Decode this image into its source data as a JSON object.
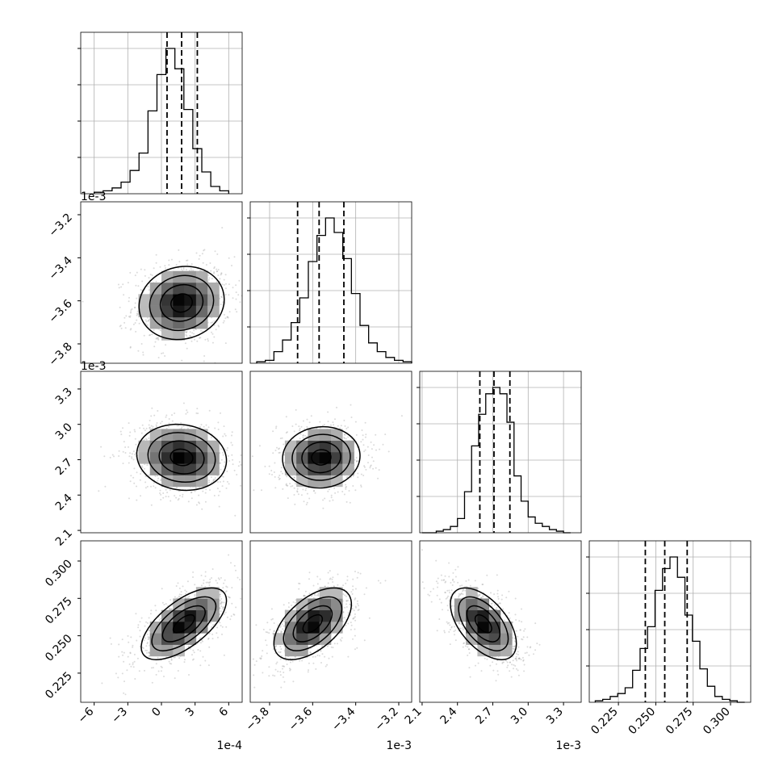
{
  "figure": {
    "type": "corner-plot",
    "parameters": [
      {
        "id": "p0",
        "offset_label": "1e-4",
        "ticks": [
          "−6",
          "−3",
          "0",
          "3",
          "6"
        ],
        "tick_values": [
          -6,
          -3,
          0,
          3,
          6
        ],
        "range": [
          -7.2,
          7.2
        ]
      },
      {
        "id": "p1",
        "offset_label": "1e-3",
        "ticks": [
          "−3.8",
          "−3.6",
          "−3.4",
          "−3.2"
        ],
        "tick_values": [
          -3.8,
          -3.6,
          -3.4,
          -3.2
        ],
        "range": [
          -3.89,
          -3.14
        ]
      },
      {
        "id": "p2",
        "offset_label": "1e-3",
        "ticks": [
          "2.1",
          "2.4",
          "2.7",
          "3.0",
          "3.3"
        ],
        "tick_values": [
          2.1,
          2.4,
          2.7,
          3.0,
          3.3
        ],
        "range": [
          2.08,
          3.45
        ]
      },
      {
        "id": "p3",
        "offset_label": "",
        "ticks": [
          "0.225",
          "0.250",
          "0.275",
          "0.300"
        ],
        "tick_values": [
          0.225,
          0.25,
          0.275,
          0.3
        ],
        "range": [
          0.2055,
          0.3135
        ]
      }
    ]
  },
  "chart_data": {
    "type": "histogram",
    "grid": true,
    "diagonal_histograms": [
      {
        "param": "p0",
        "bin_edges": [
          -6.0,
          -5.2,
          -4.4,
          -3.6,
          -2.8,
          -2.0,
          -1.2,
          -0.4,
          0.4,
          1.2,
          2.0,
          2.8,
          3.6,
          4.4,
          5.2,
          6.0
        ],
        "counts": [
          1,
          2,
          4,
          8,
          16,
          28,
          57,
          82,
          100,
          86,
          58,
          31,
          15,
          5,
          2
        ],
        "quantiles": [
          0.5,
          1.8,
          3.2
        ]
      },
      {
        "param": "p1",
        "bin_edges": [
          -3.86,
          -3.82,
          -3.78,
          -3.74,
          -3.7,
          -3.66,
          -3.62,
          -3.58,
          -3.54,
          -3.5,
          -3.46,
          -3.42,
          -3.38,
          -3.34,
          -3.3,
          -3.26,
          -3.22,
          -3.18,
          -3.14
        ],
        "counts": [
          1,
          2,
          8,
          16,
          28,
          45,
          70,
          88,
          100,
          90,
          72,
          48,
          26,
          14,
          8,
          4,
          2,
          1
        ],
        "quantiles": [
          -3.67,
          -3.57,
          -3.455
        ]
      },
      {
        "param": "p2",
        "bin_edges": [
          2.1,
          2.16,
          2.22,
          2.28,
          2.34,
          2.4,
          2.46,
          2.52,
          2.58,
          2.64,
          2.7,
          2.76,
          2.82,
          2.88,
          2.94,
          3.0,
          3.06,
          3.12,
          3.18,
          3.24,
          3.3,
          3.36
        ],
        "counts": [
          0,
          0,
          1,
          2,
          4,
          9,
          26,
          55,
          75,
          88,
          92,
          88,
          70,
          36,
          20,
          10,
          6,
          4,
          2,
          1,
          0
        ],
        "quantiles": [
          2.59,
          2.71,
          2.845
        ]
      },
      {
        "param": "p3",
        "bin_edges": [
          0.2095,
          0.2145,
          0.2195,
          0.2245,
          0.2295,
          0.2345,
          0.2395,
          0.2445,
          0.2495,
          0.2545,
          0.2595,
          0.2645,
          0.2695,
          0.2745,
          0.2795,
          0.2845,
          0.2895,
          0.2945,
          0.2995,
          0.3045,
          0.3095
        ],
        "counts": [
          1,
          2,
          4,
          6,
          10,
          22,
          37,
          52,
          77,
          92,
          100,
          86,
          60,
          42,
          23,
          11,
          4,
          2,
          1,
          0
        ],
        "quantiles": [
          0.243,
          0.256,
          0.271
        ]
      }
    ],
    "pair_panels": [
      {
        "x": "p0",
        "y": "p1",
        "peak": [
          1.8,
          -3.61
        ],
        "sd": [
          1.9,
          0.085
        ],
        "rho": 0.1
      },
      {
        "x": "p0",
        "y": "p2",
        "peak": [
          1.8,
          2.72
        ],
        "sd": [
          2.0,
          0.14
        ],
        "rho": -0.1
      },
      {
        "x": "p1",
        "y": "p2",
        "peak": [
          -3.56,
          2.72
        ],
        "sd": [
          0.09,
          0.13
        ],
        "rho": 0.05
      },
      {
        "x": "p0",
        "y": "p3",
        "peak": [
          2.0,
          0.258
        ],
        "sd": [
          1.9,
          0.012
        ],
        "rho": 0.65
      },
      {
        "x": "p1",
        "y": "p3",
        "peak": [
          -3.6,
          0.258
        ],
        "sd": [
          0.09,
          0.012
        ],
        "rho": 0.55
      },
      {
        "x": "p2",
        "y": "p3",
        "peak": [
          2.62,
          0.258
        ],
        "sd": [
          0.14,
          0.012
        ],
        "rho": -0.55
      }
    ]
  }
}
